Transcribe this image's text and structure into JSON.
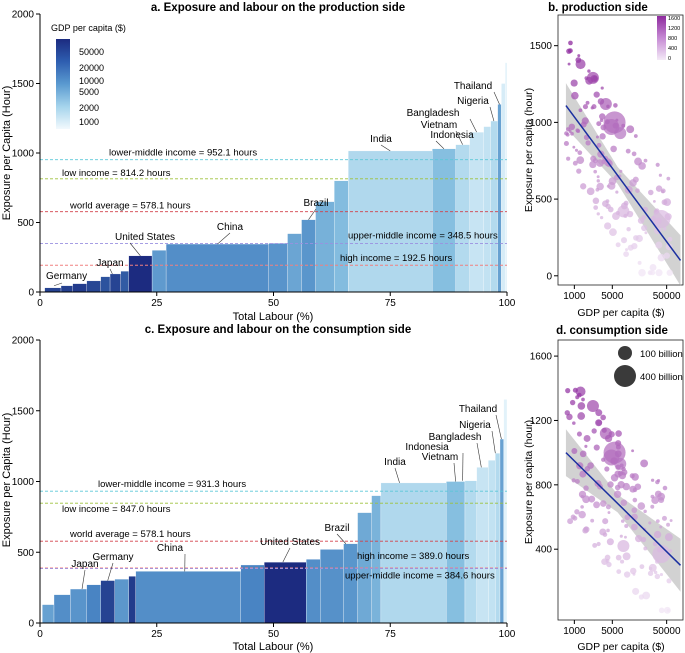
{
  "chart_data": [
    {
      "type": "bar",
      "title": "a.  Exposure and labour on the production side",
      "xlabel": "Total Labour (%)",
      "ylabel": "Exposure per Capita (Hour)",
      "xlim": [
        0,
        100
      ],
      "ylim": [
        0,
        2000
      ],
      "xticks": [
        0,
        25,
        50,
        75,
        100
      ],
      "yticks": [
        0,
        500,
        1000,
        1500,
        2000
      ],
      "legend": {
        "title": "GDP per capita ($)",
        "labels": [
          "50000",
          "20000",
          "10000",
          "5000",
          "2000",
          "1000"
        ],
        "position": "top-left"
      },
      "bars": [
        {
          "x0": 1.0,
          "x1": 4.5,
          "value": 30,
          "gdp": 40000
        },
        {
          "x0": 4.5,
          "x1": 7.0,
          "value": 45,
          "gdp": 42000
        },
        {
          "x0": 7.0,
          "x1": 10.0,
          "value": 60,
          "gdp": 46000
        },
        {
          "x0": 10.0,
          "x1": 13.0,
          "value": 80,
          "gdp": 38000
        },
        {
          "x0": 13.0,
          "x1": 15.0,
          "value": 110,
          "gdp": 30000
        },
        {
          "x0": 15.0,
          "x1": 17.3,
          "value": 130,
          "gdp": 39000
        },
        {
          "x0": 17.3,
          "x1": 19.0,
          "value": 150,
          "gdp": 26000
        },
        {
          "x0": 19.0,
          "x1": 24.0,
          "value": 260,
          "gdp": 62000
        },
        {
          "x0": 24.0,
          "x1": 27.0,
          "value": 300,
          "gdp": 8000
        },
        {
          "x0": 27.0,
          "x1": 49.0,
          "value": 345,
          "gdp": 10000
        },
        {
          "x0": 49.0,
          "x1": 53.0,
          "value": 350,
          "gdp": 9000
        },
        {
          "x0": 53.0,
          "x1": 56.0,
          "value": 420,
          "gdp": 6500
        },
        {
          "x0": 56.0,
          "x1": 59.0,
          "value": 520,
          "gdp": 8700
        },
        {
          "x0": 59.0,
          "x1": 63.0,
          "value": 650,
          "gdp": 5200
        },
        {
          "x0": 63.0,
          "x1": 66.0,
          "value": 800,
          "gdp": 4200
        },
        {
          "x0": 66.0,
          "x1": 84.0,
          "value": 1015,
          "gdp": 2100
        },
        {
          "x0": 84.0,
          "x1": 89.0,
          "value": 1030,
          "gdp": 4000
        },
        {
          "x0": 89.0,
          "x1": 92.0,
          "value": 1060,
          "gdp": 2000
        },
        {
          "x0": 92.0,
          "x1": 95.0,
          "value": 1150,
          "gdp": 1500
        },
        {
          "x0": 95.0,
          "x1": 96.5,
          "value": 1190,
          "gdp": 1600
        },
        {
          "x0": 96.5,
          "x1": 98.0,
          "value": 1230,
          "gdp": 2000
        },
        {
          "x0": 98.0,
          "x1": 98.8,
          "value": 1350,
          "gdp": 7000
        },
        {
          "x0": 98.8,
          "x1": 99.6,
          "value": 1500,
          "gdp": 1200
        },
        {
          "x0": 99.6,
          "x1": 100.0,
          "value": 1650,
          "gdp": 900
        }
      ],
      "reference_lines": [
        {
          "label": "lower-middle income = 952.1 hours",
          "value": 952.1,
          "color": "#5bc8d8"
        },
        {
          "label": "low income = 814.2 hours",
          "value": 814.2,
          "color": "#9dc13a"
        },
        {
          "label": "world average = 578.1 hours",
          "value": 578.1,
          "color": "#d2404a"
        },
        {
          "label": "upper-middle income = 348.5 hours",
          "value": 348.5,
          "color": "#9a90e0"
        },
        {
          "label": "high income = 192.5 hours",
          "value": 192.5,
          "color": "#f08080"
        }
      ],
      "annotations": [
        {
          "label": "Germany",
          "x": 3.0,
          "value": 45
        },
        {
          "label": "Japan",
          "x": 15.5,
          "value": 130
        },
        {
          "label": "United States",
          "x": 21.5,
          "value": 260
        },
        {
          "label": "China",
          "x": 38.0,
          "value": 345
        },
        {
          "label": "Brazil",
          "x": 57.5,
          "value": 520
        },
        {
          "label": "India",
          "x": 75.0,
          "value": 1015
        },
        {
          "label": "Indonesia",
          "x": 86.5,
          "value": 1030
        },
        {
          "label": "Vietnam",
          "x": 90.5,
          "value": 1060
        },
        {
          "label": "Bangladesh",
          "x": 93.5,
          "value": 1150
        },
        {
          "label": "Nigeria",
          "x": 97.2,
          "value": 1230
        },
        {
          "label": "Thailand",
          "x": 98.4,
          "value": 1350
        }
      ]
    },
    {
      "type": "scatter",
      "title": "b. production side",
      "xlabel": "GDP per capita ($)",
      "ylabel": "Exposure per capita (hour)",
      "xscale": "log",
      "xlim": [
        500,
        100000
      ],
      "ylim": [
        -60,
        1700
      ],
      "xticks": [
        1000,
        5000,
        50000
      ],
      "yticks": [
        0,
        500,
        1000,
        1500
      ],
      "legend": {
        "type": "colorbar",
        "labels": [
          "1600",
          "1200",
          "800",
          "400",
          "0"
        ],
        "position": "top-right"
      },
      "fit_line": {
        "x": [
          700,
          90000
        ],
        "y": [
          1110,
          100
        ]
      }
    },
    {
      "type": "bar",
      "title": "c.  Exposure and labour on the consumption side",
      "xlabel": "Total Labour (%)",
      "ylabel": "Exposure per Capita (Hour)",
      "xlim": [
        0,
        100
      ],
      "ylim": [
        0,
        2000
      ],
      "xticks": [
        0,
        25,
        50,
        75,
        100
      ],
      "yticks": [
        0,
        500,
        1000,
        1500,
        2000
      ],
      "bars": [
        {
          "x0": 0.5,
          "x1": 3.0,
          "value": 130,
          "gdp": 7000
        },
        {
          "x0": 3.0,
          "x1": 6.5,
          "value": 200,
          "gdp": 10000
        },
        {
          "x0": 6.5,
          "x1": 10.0,
          "value": 240,
          "gdp": 9000
        },
        {
          "x0": 10.0,
          "x1": 13.0,
          "value": 270,
          "gdp": 12000
        },
        {
          "x0": 13.0,
          "x1": 16.0,
          "value": 300,
          "gdp": 40000
        },
        {
          "x0": 16.0,
          "x1": 19.0,
          "value": 310,
          "gdp": 8500
        },
        {
          "x0": 19.0,
          "x1": 20.5,
          "value": 330,
          "gdp": 46000
        },
        {
          "x0": 20.5,
          "x1": 43.0,
          "value": 365,
          "gdp": 10000
        },
        {
          "x0": 43.0,
          "x1": 48.0,
          "value": 410,
          "gdp": 12000
        },
        {
          "x0": 48.0,
          "x1": 57.0,
          "value": 430,
          "gdp": 62000
        },
        {
          "x0": 57.0,
          "x1": 60.0,
          "value": 450,
          "gdp": 10000
        },
        {
          "x0": 60.0,
          "x1": 65.0,
          "value": 520,
          "gdp": 9500
        },
        {
          "x0": 65.0,
          "x1": 68.0,
          "value": 560,
          "gdp": 8700
        },
        {
          "x0": 68.0,
          "x1": 71.0,
          "value": 780,
          "gdp": 6000
        },
        {
          "x0": 71.0,
          "x1": 73.0,
          "value": 900,
          "gdp": 5000
        },
        {
          "x0": 73.0,
          "x1": 87.0,
          "value": 990,
          "gdp": 2100
        },
        {
          "x0": 87.0,
          "x1": 91.0,
          "value": 1000,
          "gdp": 4000
        },
        {
          "x0": 91.0,
          "x1": 93.5,
          "value": 1005,
          "gdp": 2000
        },
        {
          "x0": 93.5,
          "x1": 96.0,
          "value": 1100,
          "gdp": 1500
        },
        {
          "x0": 96.0,
          "x1": 97.5,
          "value": 1150,
          "gdp": 1600
        },
        {
          "x0": 97.5,
          "x1": 98.5,
          "value": 1200,
          "gdp": 2000
        },
        {
          "x0": 98.5,
          "x1": 99.3,
          "value": 1300,
          "gdp": 7000
        },
        {
          "x0": 99.3,
          "x1": 100.0,
          "value": 1580,
          "gdp": 1000
        }
      ],
      "reference_lines": [
        {
          "label": "lower-middle income = 931.3 hours",
          "value": 931.3,
          "color": "#5bc8d8"
        },
        {
          "label": "low income = 847.0 hours",
          "value": 847.0,
          "color": "#9dc13a"
        },
        {
          "label": "world average = 578.1 hours",
          "value": 578.1,
          "color": "#d2404a"
        },
        {
          "label": "high income = 389.0 hours",
          "value": 389.0,
          "color": "#f08080"
        },
        {
          "label": "upper-middle income = 384.6 hours",
          "value": 384.6,
          "color": "#9a90e0"
        }
      ],
      "annotations": [
        {
          "label": "Japan",
          "x": 9.0,
          "value": 240
        },
        {
          "label": "Germany",
          "x": 14.5,
          "value": 300
        },
        {
          "label": "China",
          "x": 31.0,
          "value": 365
        },
        {
          "label": "United States",
          "x": 52.0,
          "value": 430
        },
        {
          "label": "Brazil",
          "x": 65.5,
          "value": 560
        },
        {
          "label": "India",
          "x": 77.0,
          "value": 990
        },
        {
          "label": "Vietnam",
          "x": 89.0,
          "value": 1000
        },
        {
          "label": "Indonesia",
          "x": 90.5,
          "value": 1005
        },
        {
          "label": "Bangladesh",
          "x": 94.5,
          "value": 1100
        },
        {
          "label": "Nigeria",
          "x": 97.5,
          "value": 1200
        },
        {
          "label": "Thailand",
          "x": 98.8,
          "value": 1300
        }
      ]
    },
    {
      "type": "scatter",
      "title": "d. consumption side",
      "xlabel": "GDP per capita ($)",
      "ylabel": "Exposure per capita (hour)",
      "xscale": "log",
      "xlim": [
        500,
        100000
      ],
      "ylim": [
        -40,
        1700
      ],
      "xticks": [
        1000,
        5000,
        50000
      ],
      "yticks": [
        400,
        800,
        1200,
        1600
      ],
      "legend": {
        "type": "size",
        "labels": [
          "100 billion",
          "400 billion"
        ],
        "position": "top-right"
      },
      "fit_line": {
        "x": [
          700,
          90000
        ],
        "y": [
          1000,
          300
        ]
      }
    }
  ]
}
